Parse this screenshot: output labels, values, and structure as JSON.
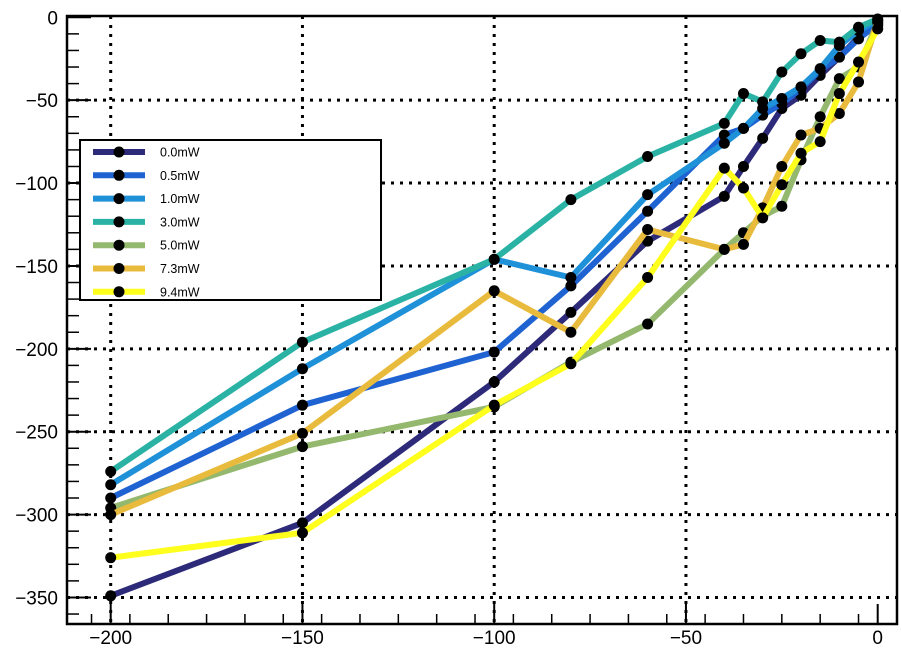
{
  "chart_data": {
    "type": "line",
    "title": "",
    "xlabel": "",
    "ylabel": "",
    "xlim": [
      -210,
      7
    ],
    "ylim": [
      -363,
      1
    ],
    "x_ticks": [
      -200,
      -150,
      -100,
      -50,
      0
    ],
    "y_ticks": [
      0,
      -50,
      -100,
      -150,
      -200,
      -250,
      -300,
      -350
    ],
    "grid": true,
    "legend_position": "upper-left",
    "series": [
      {
        "name": "0.0mW",
        "color": "#2e2a7a",
        "points": [
          [
            -200,
            -349
          ],
          [
            -150,
            -305
          ],
          [
            -100,
            -220
          ],
          [
            -80,
            -178
          ],
          [
            -60,
            -135
          ],
          [
            -40,
            -108
          ],
          [
            -35,
            -90
          ],
          [
            -30,
            -73
          ],
          [
            -25,
            -55
          ],
          [
            -20,
            -47
          ],
          [
            -15,
            -35
          ],
          [
            -10,
            -24
          ],
          [
            -5,
            -12
          ],
          [
            0,
            -5
          ]
        ]
      },
      {
        "name": "0.5mW",
        "color": "#1f63d2",
        "points": [
          [
            -200,
            -290
          ],
          [
            -150,
            -234
          ],
          [
            -100,
            -202
          ],
          [
            -80,
            -162
          ],
          [
            -60,
            -117
          ],
          [
            -40,
            -71
          ],
          [
            -35,
            -67
          ],
          [
            -30,
            -59
          ],
          [
            -25,
            -52
          ],
          [
            -20,
            -43
          ],
          [
            -15,
            -32
          ],
          [
            -10,
            -24
          ],
          [
            -5,
            -13
          ],
          [
            0,
            -4
          ]
        ]
      },
      {
        "name": "1.0mW",
        "color": "#1f91d8",
        "points": [
          [
            -200,
            -282
          ],
          [
            -150,
            -212
          ],
          [
            -100,
            -146
          ],
          [
            -80,
            -157
          ],
          [
            -60,
            -107
          ],
          [
            -40,
            -76
          ],
          [
            -35,
            -67
          ],
          [
            -30,
            -55
          ],
          [
            -25,
            -49
          ],
          [
            -20,
            -42
          ],
          [
            -15,
            -31
          ],
          [
            -10,
            -17
          ],
          [
            -5,
            -8
          ],
          [
            0,
            -2
          ]
        ]
      },
      {
        "name": "3.0mW",
        "color": "#2ab3a4",
        "points": [
          [
            -200,
            -274
          ],
          [
            -150,
            -196
          ],
          [
            -100,
            -146
          ],
          [
            -80,
            -110
          ],
          [
            -60,
            -84
          ],
          [
            -40,
            -64
          ],
          [
            -35,
            -46
          ],
          [
            -30,
            -51
          ],
          [
            -25,
            -33
          ],
          [
            -20,
            -22
          ],
          [
            -15,
            -14
          ],
          [
            -10,
            -15
          ],
          [
            -5,
            -6
          ],
          [
            0,
            -1
          ]
        ]
      },
      {
        "name": "5.0mW",
        "color": "#93b86e",
        "points": [
          [
            -200,
            -296
          ],
          [
            -150,
            -259
          ],
          [
            -100,
            -235
          ],
          [
            -80,
            -208
          ],
          [
            -60,
            -185
          ],
          [
            -40,
            -140
          ],
          [
            -35,
            -130
          ],
          [
            -30,
            -120
          ],
          [
            -25,
            -114
          ],
          [
            -20,
            -86
          ],
          [
            -15,
            -60
          ],
          [
            -10,
            -37
          ],
          [
            -5,
            -30
          ],
          [
            0,
            -3
          ]
        ]
      },
      {
        "name": "7.3mW",
        "color": "#e9bb3d",
        "points": [
          [
            -200,
            -300
          ],
          [
            -150,
            -251
          ],
          [
            -100,
            -165
          ],
          [
            -80,
            -190
          ],
          [
            -60,
            -128
          ],
          [
            -40,
            -140
          ],
          [
            -35,
            -137
          ],
          [
            -30,
            -115
          ],
          [
            -25,
            -90
          ],
          [
            -20,
            -71
          ],
          [
            -15,
            -67
          ],
          [
            -10,
            -58
          ],
          [
            -5,
            -39
          ],
          [
            0,
            -2
          ]
        ]
      },
      {
        "name": "9.4mW",
        "color": "#ffff1e",
        "points": [
          [
            -200,
            -326
          ],
          [
            -150,
            -311
          ],
          [
            -100,
            -234
          ],
          [
            -80,
            -209
          ],
          [
            -60,
            -157
          ],
          [
            -40,
            -91
          ],
          [
            -35,
            -103
          ],
          [
            -30,
            -121
          ],
          [
            -25,
            -101
          ],
          [
            -20,
            -82
          ],
          [
            -15,
            -75
          ],
          [
            -10,
            -46
          ],
          [
            -5,
            -27
          ],
          [
            0,
            -7
          ]
        ]
      }
    ]
  }
}
